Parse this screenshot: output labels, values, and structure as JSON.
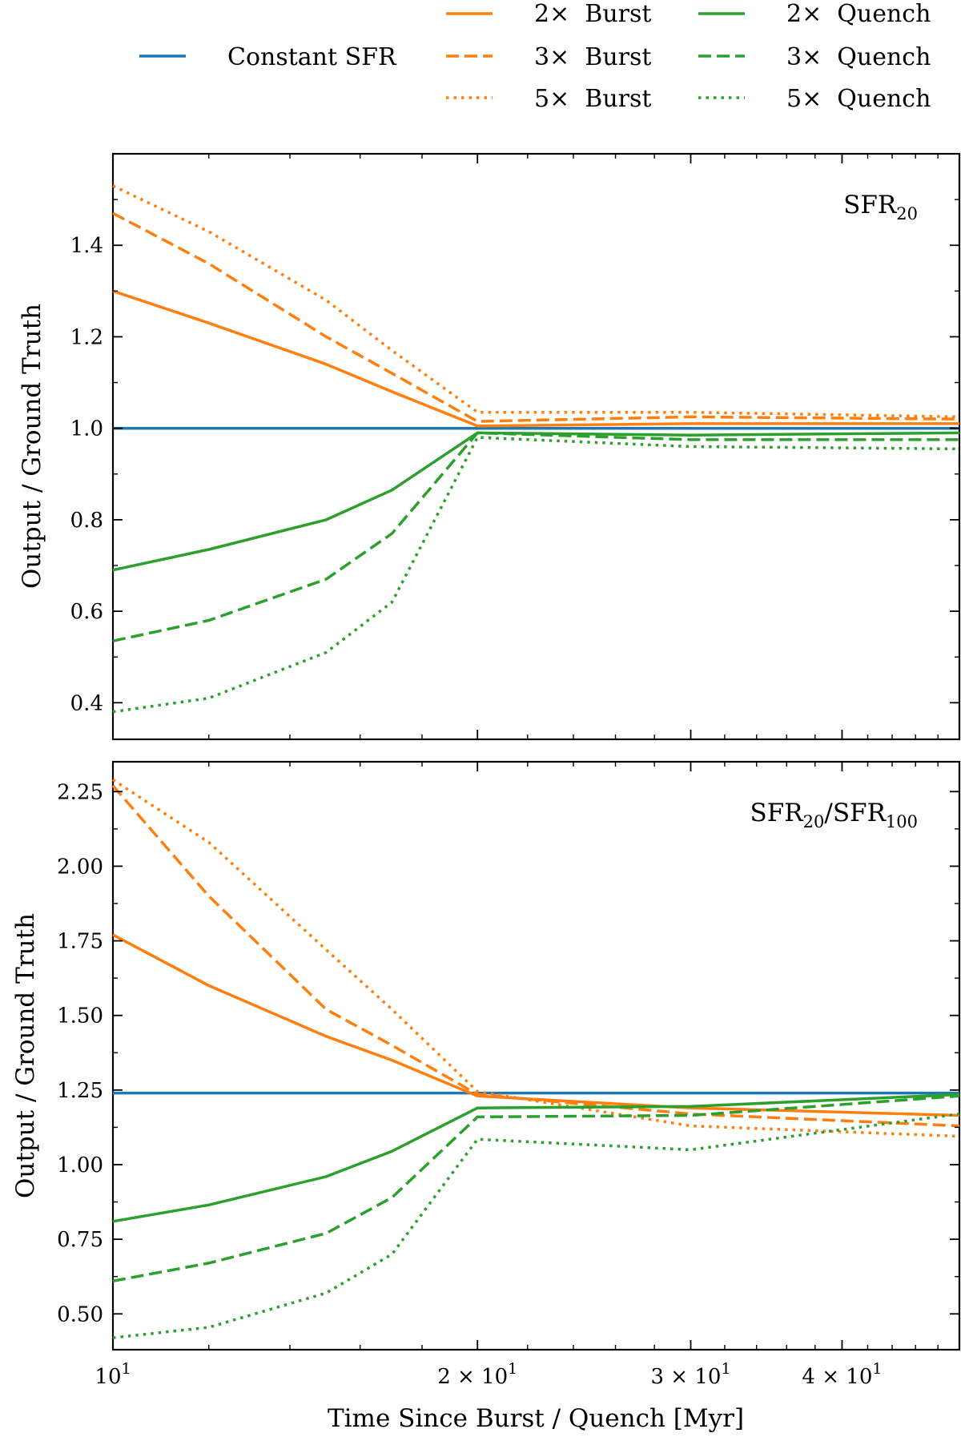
{
  "legend": {
    "entries": [
      {
        "key": "constant",
        "label": "Constant SFR"
      },
      {
        "key": "b2",
        "label": "2×  Burst"
      },
      {
        "key": "b3",
        "label": "3×  Burst"
      },
      {
        "key": "b5",
        "label": "5×  Burst"
      },
      {
        "key": "q2",
        "label": "2×  Quench"
      },
      {
        "key": "q3",
        "label": "3×  Quench"
      },
      {
        "key": "q5",
        "label": "5×  Quench"
      }
    ]
  },
  "styles": {
    "constant": {
      "color": "#1f77b4",
      "dash": "solid"
    },
    "b2": {
      "color": "#ff7f0e",
      "dash": "solid"
    },
    "b3": {
      "color": "#ff7f0e",
      "dash": "dashed"
    },
    "b5": {
      "color": "#ff7f0e",
      "dash": "dotted"
    },
    "q2": {
      "color": "#2ca02c",
      "dash": "solid"
    },
    "q3": {
      "color": "#2ca02c",
      "dash": "dashed"
    },
    "q5": {
      "color": "#2ca02c",
      "dash": "dotted"
    }
  },
  "chart_data": [
    {
      "type": "line",
      "panel_label": "SFR",
      "panel_label_sub": "20",
      "xlabel": "",
      "ylabel": "Output / Ground Truth",
      "xscale": "log",
      "xlim": [
        10,
        50
      ],
      "ylim": [
        0.32,
        1.6
      ],
      "yticks": [
        0.4,
        0.6,
        0.8,
        1.0,
        1.2,
        1.4
      ],
      "ytick_labels": [
        "0.4",
        "0.6",
        "0.8",
        "1.0",
        "1.2",
        "1.4"
      ],
      "series": [
        {
          "key": "constant",
          "name": "Constant SFR",
          "x": [
            10,
            50
          ],
          "y": [
            1.0,
            1.0
          ]
        },
        {
          "key": "b2",
          "name": "2× Burst",
          "x": [
            10,
            12,
            15,
            17,
            20,
            30,
            50
          ],
          "y": [
            1.3,
            1.23,
            1.14,
            1.08,
            1.005,
            1.01,
            1.01
          ]
        },
        {
          "key": "b3",
          "name": "3× Burst",
          "x": [
            10,
            12,
            15,
            17,
            20,
            30,
            50
          ],
          "y": [
            1.47,
            1.36,
            1.2,
            1.12,
            1.015,
            1.025,
            1.02
          ]
        },
        {
          "key": "b5",
          "name": "5× Burst",
          "x": [
            10,
            12,
            15,
            17,
            20,
            30,
            50
          ],
          "y": [
            1.53,
            1.43,
            1.28,
            1.17,
            1.035,
            1.035,
            1.025
          ]
        },
        {
          "key": "q2",
          "name": "2× Quench",
          "x": [
            10,
            12,
            15,
            17,
            20,
            30,
            50
          ],
          "y": [
            0.69,
            0.735,
            0.8,
            0.865,
            0.99,
            0.985,
            0.99
          ]
        },
        {
          "key": "q3",
          "name": "3× Quench",
          "x": [
            10,
            12,
            15,
            17,
            20,
            30,
            50
          ],
          "y": [
            0.535,
            0.58,
            0.67,
            0.77,
            0.99,
            0.975,
            0.975
          ]
        },
        {
          "key": "q5",
          "name": "5× Quench",
          "x": [
            10,
            12,
            15,
            17,
            20,
            30,
            50
          ],
          "y": [
            0.38,
            0.41,
            0.51,
            0.62,
            0.98,
            0.96,
            0.955
          ]
        }
      ]
    },
    {
      "type": "line",
      "panel_label": "SFR",
      "panel_label_sub": "20",
      "panel_label_mid": "/SFR",
      "panel_label_sub2": "100",
      "xlabel": "Time Since Burst / Quench [Myr]",
      "ylabel": "Output / Ground Truth",
      "xscale": "log",
      "xlim": [
        10,
        50
      ],
      "ylim": [
        0.38,
        2.35
      ],
      "xticks": [
        10,
        20,
        30,
        40
      ],
      "xtick_labels": [
        {
          "base": "10",
          "exp": "1"
        },
        {
          "base": "2 × 10",
          "exp": "1"
        },
        {
          "base": "3 × 10",
          "exp": "1"
        },
        {
          "base": "4 × 10",
          "exp": "1"
        }
      ],
      "yticks": [
        0.5,
        0.75,
        1.0,
        1.25,
        1.5,
        1.75,
        2.0,
        2.25
      ],
      "ytick_labels": [
        "0.50",
        "0.75",
        "1.00",
        "1.25",
        "1.50",
        "1.75",
        "2.00",
        "2.25"
      ],
      "series": [
        {
          "key": "constant",
          "name": "Constant SFR",
          "x": [
            10,
            50
          ],
          "y": [
            1.24,
            1.24
          ]
        },
        {
          "key": "b2",
          "name": "2× Burst",
          "x": [
            10,
            12,
            15,
            17,
            20,
            30,
            50
          ],
          "y": [
            1.77,
            1.6,
            1.43,
            1.35,
            1.23,
            1.19,
            1.165
          ]
        },
        {
          "key": "b3",
          "name": "3× Burst",
          "x": [
            10,
            12,
            15,
            17,
            20,
            30,
            50
          ],
          "y": [
            2.27,
            1.9,
            1.52,
            1.4,
            1.235,
            1.17,
            1.13
          ]
        },
        {
          "key": "b5",
          "name": "5× Burst",
          "x": [
            10,
            12,
            15,
            17,
            20,
            30,
            50
          ],
          "y": [
            2.29,
            2.08,
            1.72,
            1.52,
            1.245,
            1.13,
            1.095
          ]
        },
        {
          "key": "q2",
          "name": "2× Quench",
          "x": [
            10,
            12,
            15,
            17,
            20,
            30,
            50
          ],
          "y": [
            0.81,
            0.865,
            0.96,
            1.045,
            1.19,
            1.195,
            1.235
          ]
        },
        {
          "key": "q3",
          "name": "3× Quench",
          "x": [
            10,
            12,
            15,
            17,
            20,
            30,
            50
          ],
          "y": [
            0.61,
            0.67,
            0.77,
            0.89,
            1.16,
            1.165,
            1.23
          ]
        },
        {
          "key": "q5",
          "name": "5× Quench",
          "x": [
            10,
            12,
            15,
            17,
            20,
            30,
            50
          ],
          "y": [
            0.42,
            0.455,
            0.57,
            0.7,
            1.085,
            1.05,
            1.17
          ]
        }
      ]
    }
  ]
}
